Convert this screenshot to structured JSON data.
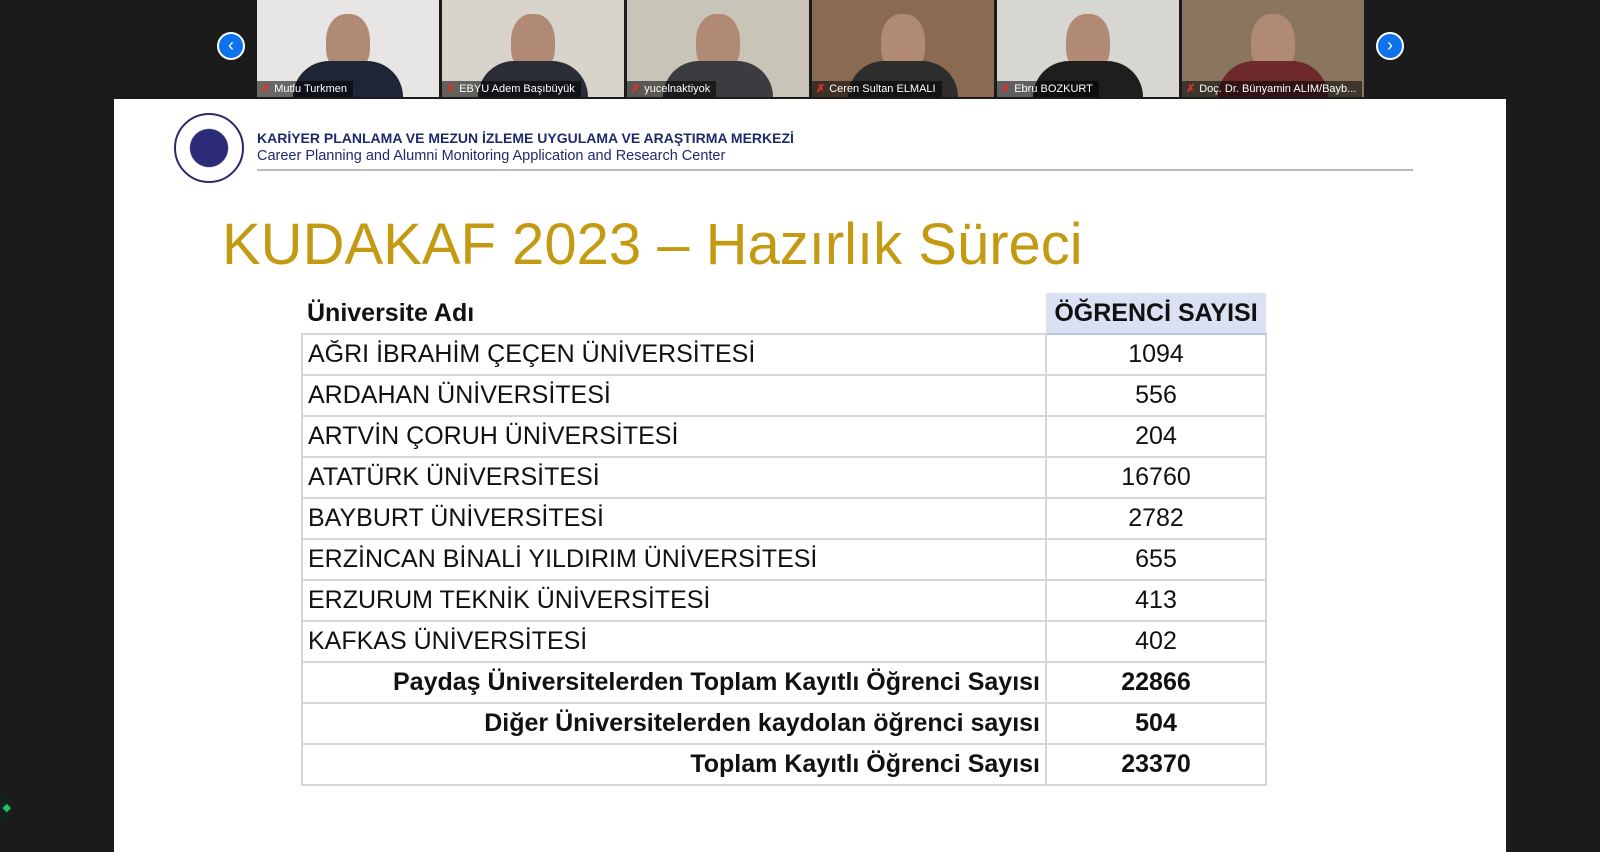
{
  "participants": [
    {
      "name": "Mutlu Turkmen",
      "bg": "#e8e6e4",
      "shirt": "#1e2535"
    },
    {
      "name": "EBYU Adem Başıbüyük",
      "bg": "#d8d4cc",
      "shirt": "#2a2d36"
    },
    {
      "name": "yucelnaktiyok",
      "bg": "#c9c4b8",
      "shirt": "#3a3c40"
    },
    {
      "name": "Ceren Sultan ELMALI",
      "bg": "#8a6a52",
      "shirt": "#2d2d2d"
    },
    {
      "name": "Ebru BOZKURT",
      "bg": "#d8d6d0",
      "shirt": "#1e1e1e"
    },
    {
      "name": "Doç. Dr. Bünyamin ALIM/Bayb...",
      "bg": "#8a7560",
      "shirt": "#6e2a2a"
    }
  ],
  "nav": {
    "prev_icon": "chevron-left-icon",
    "next_icon": "chevron-right-icon",
    "prev": "‹",
    "next": "›"
  },
  "slide": {
    "header_tr": "KARİYER PLANLAMA VE MEZUN İZLEME UYGULAMA VE ARAŞTIRMA MERKEZİ",
    "header_en": "Career Planning and Alumni Monitoring Application and Research Center",
    "logo_text": "Atatürk Üniversitesi / Ataturk University",
    "title": "KUDAKAF 2023 – Hazırlık Süreci",
    "title_color": "#c39a12",
    "table": {
      "headers": [
        "Üniversite Adı",
        "ÖĞRENCİ SAYISI"
      ],
      "rows": [
        [
          "AĞRI İBRAHİM ÇEÇEN ÜNİVERSİTESİ",
          "1094"
        ],
        [
          "ARDAHAN ÜNİVERSİTESİ",
          "556"
        ],
        [
          "ARTVİN ÇORUH ÜNİVERSİTESİ",
          "204"
        ],
        [
          "ATATÜRK ÜNİVERSİTESİ",
          "16760"
        ],
        [
          "BAYBURT ÜNİVERSİTESİ",
          "2782"
        ],
        [
          "ERZİNCAN BİNALİ YILDIRIM ÜNİVERSİTESİ",
          "655"
        ],
        [
          "ERZURUM TEKNİK ÜNİVERSİTESİ",
          "413"
        ],
        [
          "KAFKAS ÜNİVERSİTESİ",
          "402"
        ]
      ],
      "totals": [
        [
          "Paydaş Üniversitelerden Toplam Kayıtlı Öğrenci Sayısı",
          "22866"
        ],
        [
          "Diğer Üniversitelerden kaydolan öğrenci sayısı",
          "504"
        ],
        [
          "Toplam Kayıtlı Öğrenci Sayısı",
          "23370"
        ]
      ]
    }
  }
}
